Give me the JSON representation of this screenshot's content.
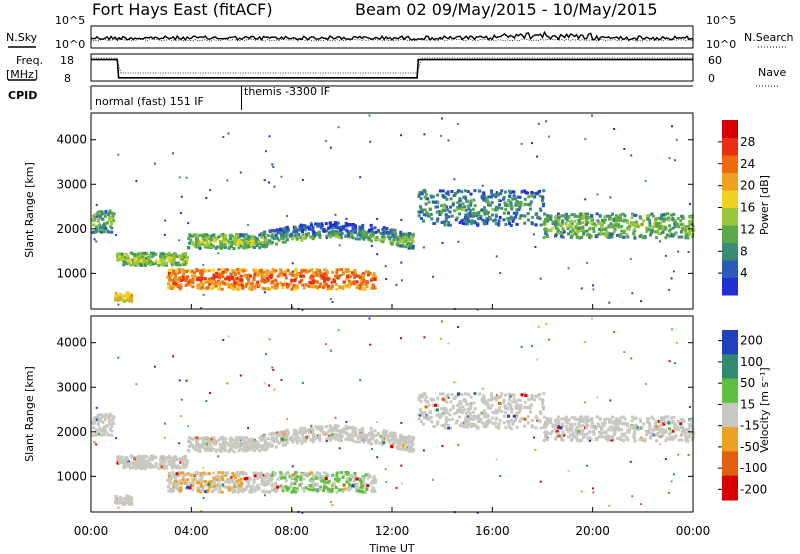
{
  "header": {
    "station": "Fort Hays East (fitACF)",
    "beam_dates": "Beam 02 09/May/2015 - 10/May/2015"
  },
  "panels": {
    "nsky_label": "N.Sky",
    "nsearch_label": "N.Search",
    "noise_ticks_left": [
      "10^5",
      "10^0"
    ],
    "noise_ticks_right": [
      "10^5",
      "10^0"
    ],
    "freq_label_1": "Freq.",
    "freq_label_2": "[MHz]",
    "freq_ticks": [
      "18",
      "8"
    ],
    "nave_label": "Nave",
    "nave_ticks": [
      "60",
      "0"
    ],
    "cpid_label": "CPID",
    "cpid_segments": [
      "normal (fast) 151 IF",
      "themis -3300 IF"
    ],
    "x_label": "Time UT",
    "y_label": "Slant Range [km]",
    "power_label": "Power [dB]",
    "velocity_label": "Velocity [m s⁻¹]"
  },
  "colors": {
    "power_scale": [
      "#1f2fd0",
      "#2b5ab8",
      "#3d8a78",
      "#5aa84a",
      "#98c83a",
      "#f0d020",
      "#f0a020",
      "#ee6a10",
      "#e83010",
      "#d80000"
    ],
    "velocity_scale": [
      "#2040c0",
      "#2f8a70",
      "#5fc040",
      "#c8c8c0",
      "#f0a020",
      "#e06010",
      "#d80000"
    ],
    "scatter_gray": "#c8c8c0"
  },
  "chart_data": {
    "type": "heatmap",
    "x_range": [
      "00:00",
      "00:00"
    ],
    "x_ticks": [
      "00:00",
      "04:00",
      "08:00",
      "12:00",
      "16:00",
      "20:00",
      "00:00"
    ],
    "y_range_km": [
      200,
      4600
    ],
    "y_ticks": [
      1000,
      2000,
      3000,
      4000
    ],
    "noise_range_log": [
      0,
      5
    ],
    "freq_range_mhz": [
      8,
      18
    ],
    "nave_range": [
      0,
      60
    ],
    "freq_series": [
      {
        "hour": 0,
        "mhz": 16.5
      },
      {
        "hour": 1.05,
        "mhz": 16.5
      },
      {
        "hour": 1.1,
        "mhz": 8.9
      },
      {
        "hour": 13.0,
        "mhz": 8.9
      },
      {
        "hour": 13.05,
        "mhz": 16.5
      },
      {
        "hour": 24,
        "mhz": 16.5
      }
    ],
    "cpid_change_hour": 6.0,
    "power_colorbar": {
      "ticks": [
        4,
        8,
        12,
        16,
        20,
        24,
        28
      ],
      "range": [
        0,
        32
      ]
    },
    "velocity_colorbar": {
      "ticks": [
        "200",
        "100",
        "50",
        "15",
        "-15",
        "-50",
        "-100",
        "-200"
      ]
    },
    "scatter_bands": [
      {
        "t_start": 0.0,
        "t_end": 0.9,
        "r_center": 2200,
        "r_width": 500,
        "power": 11
      },
      {
        "t_start": 1.0,
        "t_end": 3.8,
        "r_center": 1350,
        "r_width": 280,
        "power": 14
      },
      {
        "t_start": 3.8,
        "t_end": 6.5,
        "r_center": 1750,
        "r_width": 320,
        "power": 13
      },
      {
        "t_start": 6.5,
        "t_end": 12.8,
        "r_center": 1750,
        "r_width": 350,
        "power": 11
      },
      {
        "t_start": 3.0,
        "t_end": 11.3,
        "r_center": 900,
        "r_width": 450,
        "power": 24
      },
      {
        "t_start": 0.9,
        "t_end": 1.6,
        "r_center": 500,
        "r_width": 200,
        "power": 20
      },
      {
        "t_start": 13.0,
        "t_end": 18.0,
        "r_center": 2500,
        "r_width": 800,
        "power": 8
      },
      {
        "t_start": 18.0,
        "t_end": 24.0,
        "r_center": 2100,
        "r_width": 550,
        "power": 12
      }
    ]
  }
}
